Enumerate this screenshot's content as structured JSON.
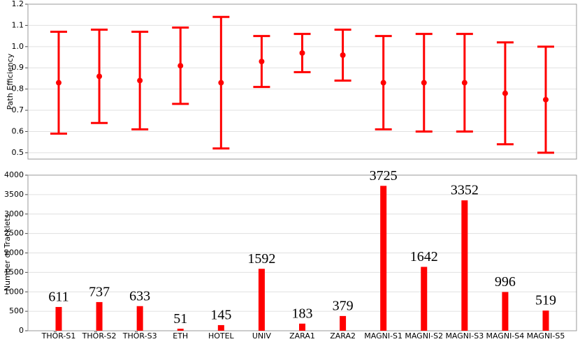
{
  "chart_data": [
    {
      "type": "errorbar",
      "ylabel": "Path Efficiency",
      "color": "#ff0000",
      "grid": true,
      "values": [
        0.83,
        0.86,
        0.84,
        0.91,
        0.83,
        0.93,
        0.97,
        0.96,
        0.83,
        0.83,
        0.83,
        0.78,
        0.75
      ],
      "errors": [
        0.24,
        0.22,
        0.23,
        0.18,
        0.31,
        0.12,
        0.09,
        0.12,
        0.22,
        0.23,
        0.23,
        0.24,
        0.25
      ],
      "ylim": [
        0.47,
        1.2
      ],
      "yticks": [
        0.5,
        0.6,
        0.7,
        0.8,
        0.9,
        {
          "value": 1,
          "label": "1.0"
        },
        1.1,
        1.2
      ]
    },
    {
      "type": "bar",
      "ylabel": "Number of Tracklets",
      "color": "#ff0000",
      "grid": true,
      "categories": [
        "THÖR-S1",
        "THÖR-S2",
        "THÖR-S3",
        "ETH",
        "HOTEL",
        "UNIV",
        "ZARA1",
        "ZARA2",
        "MAGNI-S1",
        "MAGNI-S2",
        "MAGNI-S3",
        "MAGNI-S4",
        "MAGNI-S5"
      ],
      "values": [
        611,
        737,
        633,
        51,
        145,
        1592,
        183,
        379,
        3725,
        1642,
        3352,
        996,
        519
      ],
      "ylim": [
        0,
        4000
      ],
      "yticks": [
        0,
        500,
        1000,
        1500,
        2000,
        2500,
        3000,
        3500,
        4000
      ]
    }
  ]
}
